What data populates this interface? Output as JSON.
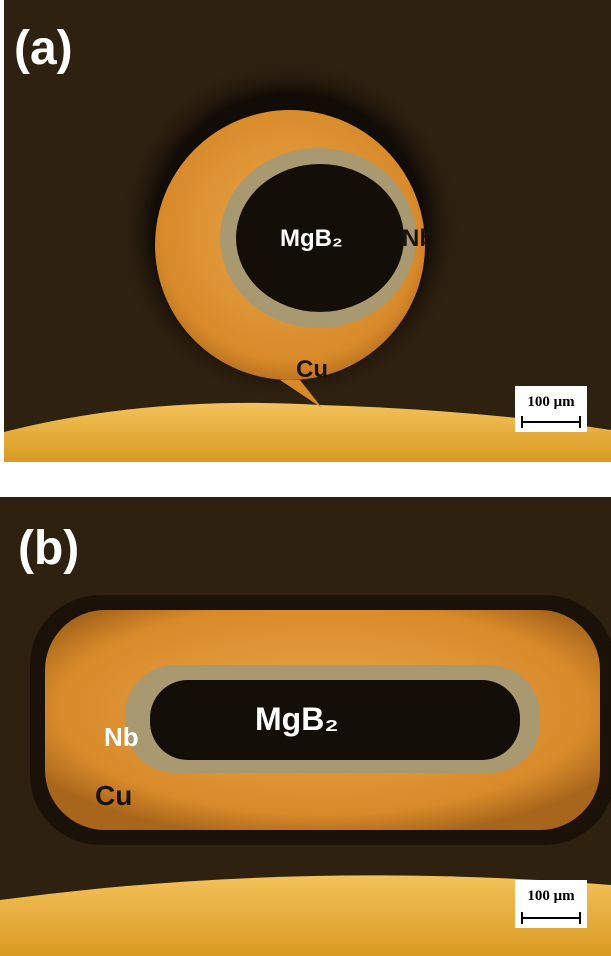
{
  "panels": [
    {
      "label": "(a)",
      "annotations": {
        "core": "MgB₂",
        "barrier": "Nb",
        "sheath": "Cu"
      },
      "scale_bar": "100 μm"
    },
    {
      "label": "(b)",
      "annotations": {
        "core": "MgB₂",
        "barrier": "Nb",
        "sheath": "Cu"
      },
      "scale_bar": "100 μm"
    }
  ]
}
